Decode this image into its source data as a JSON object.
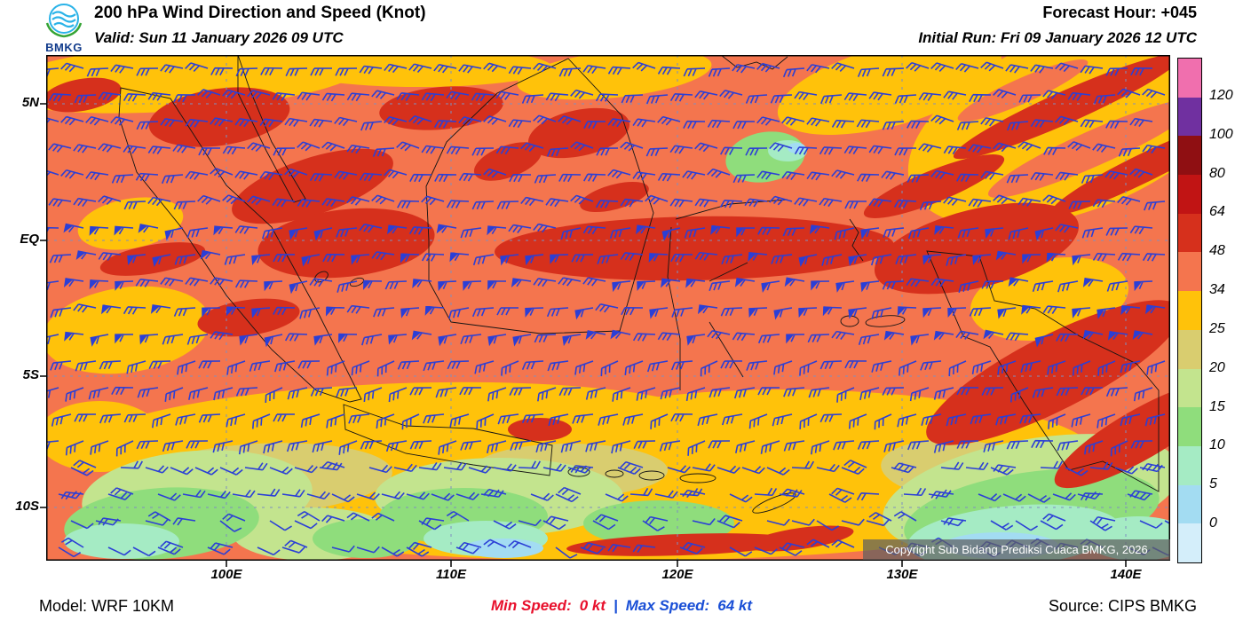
{
  "header": {
    "logo_text": "BMKG",
    "title": "200 hPa Wind Direction and Speed (Knot)",
    "valid": "Valid: Sun 11 January 2026 09 UTC",
    "forecast_hour": "Forecast Hour: +045",
    "initial_run": "Initial Run: Fri 09 January 2026 12 UTC"
  },
  "map": {
    "lat_labels": [
      "5N",
      "EQ",
      "5S",
      "10S"
    ],
    "lon_labels": [
      "100E",
      "110E",
      "120E",
      "130E",
      "140E"
    ],
    "copyright": "Copyright Sub Bidang Prediksi Cuaca BMKG, 2026",
    "wind_barb_color": "#2B3FD6",
    "background_speed_color": "#F4754E"
  },
  "colorbar": {
    "labels": [
      "120",
      "100",
      "80",
      "64",
      "48",
      "34",
      "25",
      "20",
      "15",
      "10",
      "5",
      "0"
    ],
    "colors": [
      "#F06FAE",
      "#7030A0",
      "#8F0F12",
      "#C11414",
      "#D6301C",
      "#F4754E",
      "#FFC20A",
      "#D9CD6F",
      "#C3E48E",
      "#8FDD7C",
      "#A5EBC4",
      "#A3DCF2",
      "#D4EEFA"
    ]
  },
  "footer": {
    "model": "Model: WRF 10KM",
    "min_speed_label": "Min Speed:",
    "min_speed_value": "0 kt",
    "separator": "|",
    "max_speed_label": "Max Speed:",
    "max_speed_value": "64 kt",
    "source": "Source: CIPS BMKG"
  }
}
